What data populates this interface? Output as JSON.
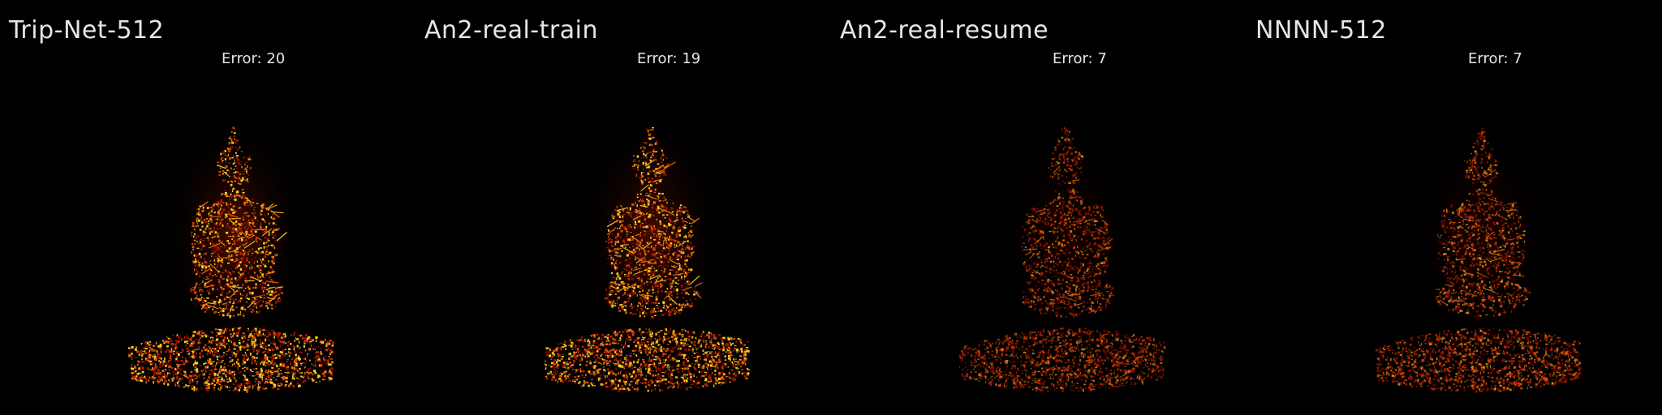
{
  "panels": [
    {
      "title": "Trip-Net-512",
      "error_label": "Error:",
      "error_value": "20",
      "intensity": 1.0
    },
    {
      "title": "An2-real-train",
      "error_label": "Error:",
      "error_value": "19",
      "intensity": 0.95
    },
    {
      "title": "An2-real-resume",
      "error_label": "Error:",
      "error_value": "7",
      "intensity": 0.45
    },
    {
      "title": "NNNN-512",
      "error_label": "Error:",
      "error_value": "7",
      "intensity": 0.5
    }
  ],
  "colors": {
    "background": "#000000",
    "text": "#e6e6e6",
    "heat_low": "#5a0000",
    "heat_mid": "#d22800",
    "heat_high": "#ffd21e"
  },
  "icons": {
    "subject": "buddha-statue-error-heatmap-icon",
    "base": "pedestal-error-heatmap-icon"
  }
}
